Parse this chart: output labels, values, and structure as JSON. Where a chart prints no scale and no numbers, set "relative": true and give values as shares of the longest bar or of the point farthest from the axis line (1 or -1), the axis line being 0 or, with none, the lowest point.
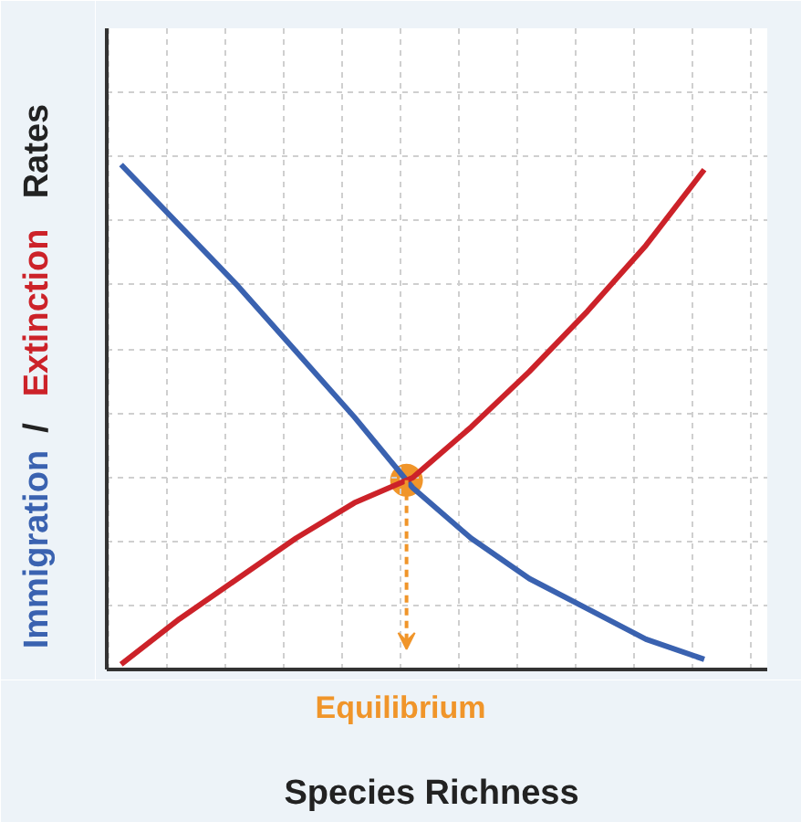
{
  "chart_data": {
    "type": "line",
    "relative": true,
    "grid": true,
    "tick_labels": false,
    "xlabel": "Species Richness",
    "ylabel": "Immigration / Extinction Rates",
    "categories": [
      null,
      null,
      null,
      null,
      null,
      null,
      null,
      null,
      null,
      null,
      null
    ],
    "series": [
      {
        "color": "#3a62b0",
        "values": [
          1.0,
          0.88,
          0.76,
          0.63,
          0.5,
          0.36,
          0.26,
          0.18,
          0.12,
          0.06,
          0.02
        ]
      },
      {
        "color": "#cc2229",
        "values": [
          0.01,
          0.1,
          0.18,
          0.26,
          0.33,
          0.38,
          0.48,
          0.59,
          0.71,
          0.84,
          0.99
        ]
      }
    ],
    "annotations": [
      "Equilibrium"
    ]
  }
}
